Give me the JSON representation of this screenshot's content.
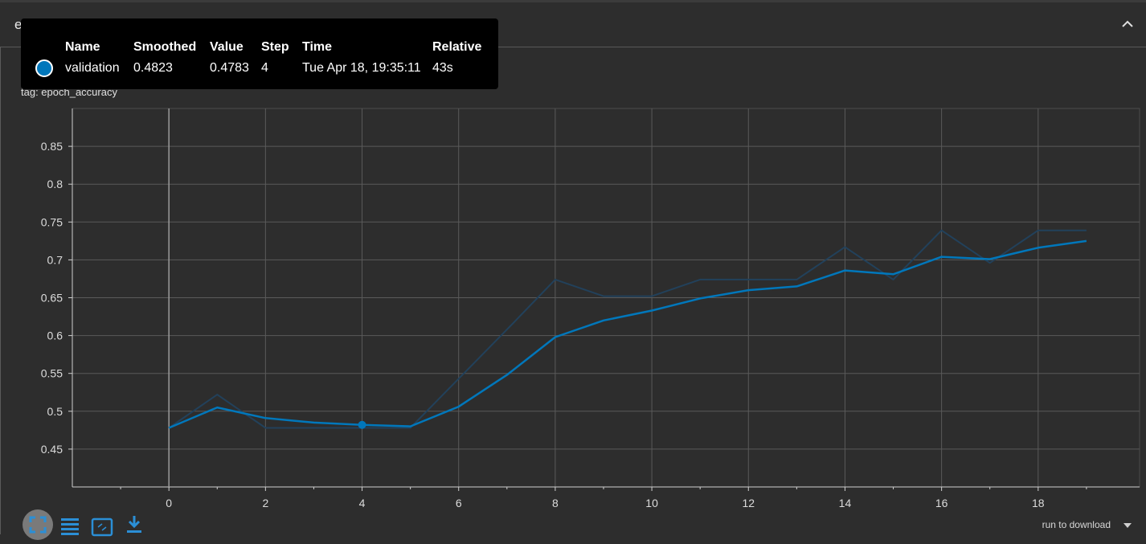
{
  "header": {
    "title": "epoch_accuracy"
  },
  "card": {
    "title": "epoch_accuracy",
    "tag": "tag: epoch_accuracy"
  },
  "tooltip": {
    "headers": {
      "name": "Name",
      "smoothed": "Smoothed",
      "value": "Value",
      "step": "Step",
      "time": "Time",
      "relative": "Relative"
    },
    "row": {
      "name": "validation",
      "smoothed": "0.4823",
      "value": "0.4783",
      "step": "4",
      "time": "Tue Apr 18, 19:35:11",
      "relative": "43s"
    },
    "swatch_color": "#0077bb"
  },
  "toolbar": {
    "fit_icon": "fit-domain-icon",
    "list_icon": "list-icon",
    "zoom_icon": "select-zoom-icon",
    "download_icon": "download-icon",
    "download_label": "run to download"
  },
  "chart_data": {
    "type": "line",
    "x_ticks": [
      0,
      2,
      4,
      6,
      8,
      10,
      12,
      14,
      16,
      18
    ],
    "y_ticks": [
      0.45,
      0.5,
      0.55,
      0.6,
      0.65,
      0.7,
      0.75,
      0.8,
      0.85
    ],
    "x_tick_labels": [
      "0",
      "2",
      "4",
      "6",
      "8",
      "10",
      "12",
      "14",
      "16",
      "18"
    ],
    "y_tick_labels": [
      "0.45",
      "0.5",
      "0.55",
      "0.6",
      "0.65",
      "0.7",
      "0.75",
      "0.8",
      "0.85"
    ],
    "xlim": [
      -2,
      20.1
    ],
    "ylim": [
      0.4,
      0.9
    ],
    "grid": true,
    "highlight_x": 4,
    "series": [
      {
        "name": "validation",
        "role": "raw",
        "color": "#22415b",
        "x": [
          0,
          1,
          2,
          3,
          4,
          5,
          6,
          7,
          8,
          9,
          10,
          11,
          12,
          13,
          14,
          15,
          16,
          17,
          18,
          19
        ],
        "y": [
          0.478,
          0.522,
          0.478,
          0.478,
          0.478,
          0.478,
          0.543,
          0.608,
          0.674,
          0.652,
          0.652,
          0.674,
          0.674,
          0.674,
          0.717,
          0.674,
          0.739,
          0.696,
          0.739,
          0.739
        ]
      },
      {
        "name": "validation",
        "role": "smoothed",
        "color": "#0077bb",
        "x": [
          0,
          1,
          2,
          3,
          4,
          5,
          6,
          7,
          8,
          9,
          10,
          11,
          12,
          13,
          14,
          15,
          16,
          17,
          18,
          19
        ],
        "y": [
          0.478,
          0.505,
          0.491,
          0.485,
          0.482,
          0.48,
          0.506,
          0.548,
          0.598,
          0.62,
          0.633,
          0.649,
          0.66,
          0.665,
          0.686,
          0.681,
          0.704,
          0.701,
          0.716,
          0.725
        ]
      }
    ]
  }
}
